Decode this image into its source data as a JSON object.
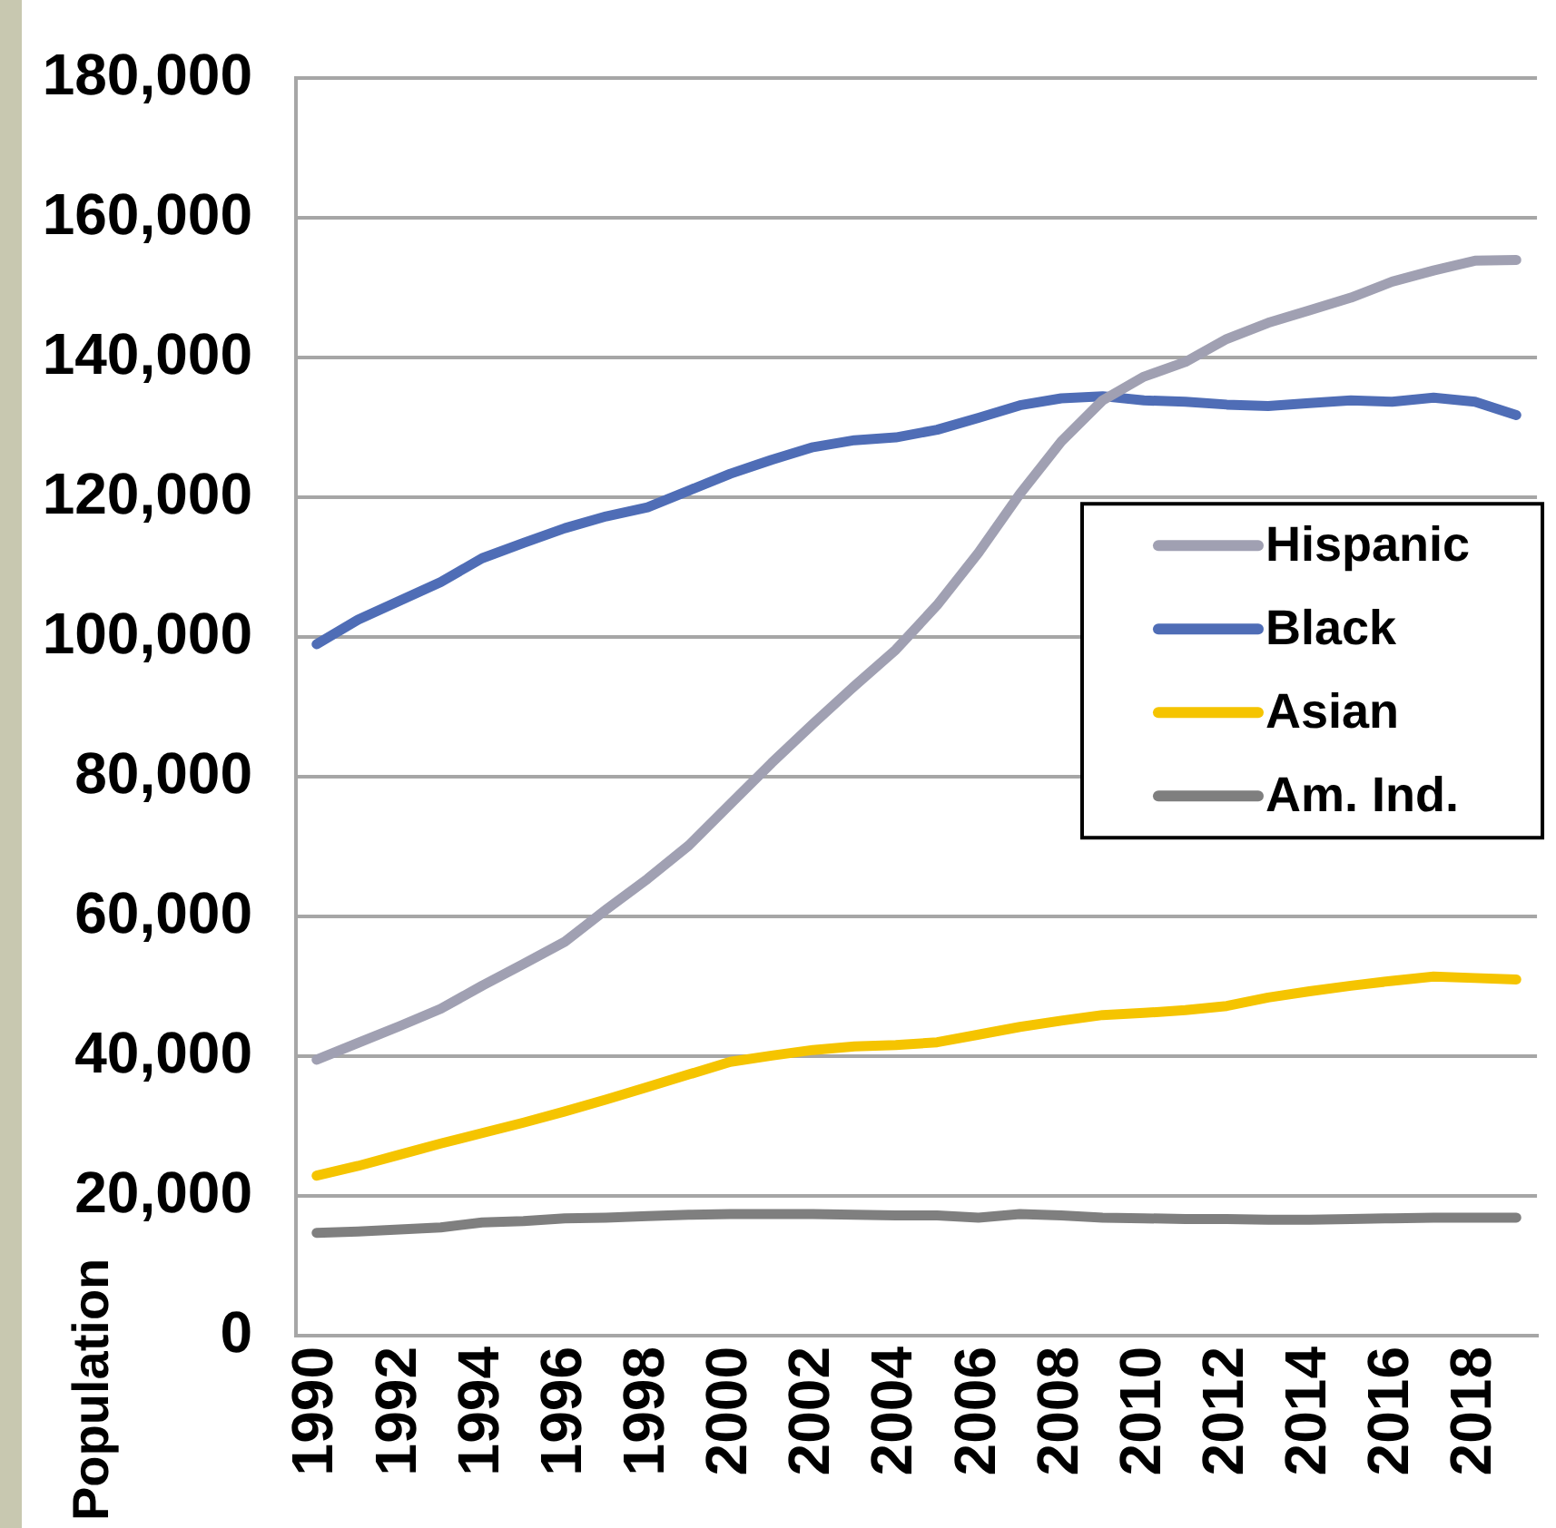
{
  "chart_data": {
    "type": "line",
    "ylabel": "Population",
    "x": [
      1990,
      1991,
      1992,
      1993,
      1994,
      1995,
      1996,
      1997,
      1998,
      1999,
      2000,
      2001,
      2002,
      2003,
      2004,
      2005,
      2006,
      2007,
      2008,
      2009,
      2010,
      2011,
      2012,
      2013,
      2014,
      2015,
      2016,
      2017,
      2018,
      2019
    ],
    "xlim": [
      1989.5,
      2019.5
    ],
    "xticks": [
      1990,
      1992,
      1994,
      1996,
      1998,
      2000,
      2002,
      2004,
      2006,
      2008,
      2010,
      2012,
      2014,
      2016,
      2018
    ],
    "ylim": [
      0,
      180000
    ],
    "yticks": [
      0,
      {
        "value": 20000,
        "label": "20,000"
      },
      {
        "value": 40000,
        "label": "40,000"
      },
      {
        "value": 60000,
        "label": "60,000"
      },
      {
        "value": 80000,
        "label": "80,000"
      },
      {
        "value": 100000,
        "label": "100,000"
      },
      {
        "value": 120000,
        "label": "120,000"
      },
      {
        "value": 140000,
        "label": "140,000"
      },
      {
        "value": 160000,
        "label": "160,000"
      },
      {
        "value": 180000,
        "label": "180,000"
      }
    ],
    "grid": "y",
    "legend": "right",
    "series": [
      {
        "name": "Hispanic",
        "color": "#a0a0b2",
        "values": [
          39500,
          41900,
          44300,
          46800,
          50100,
          53200,
          56400,
          61000,
          65400,
          70200,
          76100,
          82000,
          87600,
          93000,
          98200,
          104600,
          112100,
          120500,
          128000,
          133900,
          137300,
          139400,
          142700,
          145000,
          146800,
          148600,
          150900,
          152500,
          153900,
          154000
        ]
      },
      {
        "name": "Black",
        "color": "#4f6db6",
        "values": [
          99000,
          102500,
          105200,
          107900,
          111300,
          113500,
          115600,
          117300,
          118600,
          121000,
          123400,
          125400,
          127200,
          128200,
          128600,
          129700,
          131400,
          133200,
          134200,
          134500,
          133900,
          133700,
          133300,
          133100,
          133500,
          133900,
          133700,
          134300,
          133700,
          131800
        ]
      },
      {
        "name": "Asian",
        "color": "#f5c400",
        "values": [
          22900,
          24300,
          25900,
          27500,
          29000,
          30500,
          32100,
          33800,
          35600,
          37400,
          39200,
          40100,
          40900,
          41400,
          41600,
          42000,
          43100,
          44200,
          45100,
          45900,
          46200,
          46600,
          47200,
          48400,
          49300,
          50100,
          50800,
          51400,
          51200,
          51000
        ]
      },
      {
        "name": "Am. Ind.",
        "color": "#7f7f7f",
        "values": [
          14700,
          14900,
          15200,
          15500,
          16200,
          16400,
          16800,
          16900,
          17100,
          17300,
          17400,
          17400,
          17400,
          17300,
          17200,
          17200,
          16900,
          17400,
          17200,
          16900,
          16800,
          16700,
          16700,
          16600,
          16600,
          16700,
          16800,
          16900,
          16900,
          16900
        ]
      }
    ]
  }
}
